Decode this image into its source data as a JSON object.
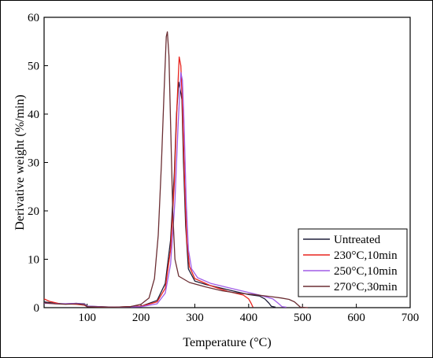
{
  "chart_data": {
    "type": "line",
    "title": "",
    "xlabel": "Temperature (°C)",
    "ylabel": "Derivative weight (%/min)",
    "xlim": [
      20,
      700
    ],
    "ylim": [
      0,
      60
    ],
    "xticks": [
      100,
      200,
      300,
      400,
      500,
      600,
      700
    ],
    "yticks": [
      0,
      10,
      20,
      30,
      40,
      50,
      60
    ],
    "grid": false,
    "legend_position": "bottom-right",
    "series": [
      {
        "name": "Untreated",
        "color": "#1f1f3a",
        "points": [
          [
            20,
            1.2
          ],
          [
            40,
            0.9
          ],
          [
            60,
            0.8
          ],
          [
            80,
            0.9
          ],
          [
            95,
            0.8
          ],
          [
            100,
            0.3
          ],
          [
            150,
            0.1
          ],
          [
            200,
            0.3
          ],
          [
            230,
            1.5
          ],
          [
            245,
            5
          ],
          [
            255,
            14
          ],
          [
            262,
            28
          ],
          [
            266,
            40
          ],
          [
            270,
            46.6
          ],
          [
            273,
            45
          ],
          [
            276,
            43
          ],
          [
            279,
            30
          ],
          [
            283,
            17
          ],
          [
            288,
            8
          ],
          [
            300,
            5.5
          ],
          [
            320,
            4.8
          ],
          [
            350,
            4
          ],
          [
            380,
            3.2
          ],
          [
            400,
            2.7
          ],
          [
            420,
            2.4
          ],
          [
            430,
            1.8
          ],
          [
            438,
            0.9
          ],
          [
            442,
            0.3
          ],
          [
            450,
            0.1
          ]
        ]
      },
      {
        "name": "230°C,10min",
        "color": "#e8231d",
        "points": [
          [
            20,
            1.8
          ],
          [
            30,
            1.3
          ],
          [
            50,
            0.8
          ],
          [
            80,
            0.7
          ],
          [
            95,
            0.5
          ],
          [
            100,
            0.2
          ],
          [
            150,
            0.1
          ],
          [
            200,
            0.3
          ],
          [
            230,
            1.2
          ],
          [
            245,
            4
          ],
          [
            255,
            12
          ],
          [
            262,
            26
          ],
          [
            267,
            42
          ],
          [
            271,
            51.8
          ],
          [
            274,
            50
          ],
          [
            277,
            42
          ],
          [
            281,
            26
          ],
          [
            285,
            14
          ],
          [
            290,
            8.5
          ],
          [
            300,
            6
          ],
          [
            330,
            4.5
          ],
          [
            360,
            3.4
          ],
          [
            390,
            2.6
          ],
          [
            400,
            1.8
          ],
          [
            405,
            0.8
          ],
          [
            408,
            0.1
          ]
        ]
      },
      {
        "name": "250°C,10min",
        "color": "#a05ce6",
        "points": [
          [
            20,
            0.9
          ],
          [
            50,
            0.8
          ],
          [
            80,
            0.9
          ],
          [
            95,
            0.7
          ],
          [
            100,
            0.3
          ],
          [
            150,
            0.1
          ],
          [
            200,
            0.2
          ],
          [
            230,
            0.8
          ],
          [
            245,
            3
          ],
          [
            255,
            9
          ],
          [
            263,
            22
          ],
          [
            269,
            38
          ],
          [
            274,
            48.6
          ],
          [
            277,
            47
          ],
          [
            280,
            38
          ],
          [
            284,
            22
          ],
          [
            288,
            12
          ],
          [
            294,
            8
          ],
          [
            305,
            6.2
          ],
          [
            330,
            5
          ],
          [
            360,
            4.2
          ],
          [
            390,
            3.4
          ],
          [
            420,
            2.6
          ],
          [
            445,
            1.8
          ],
          [
            455,
            0.9
          ],
          [
            462,
            0.2
          ],
          [
            470,
            0.1
          ]
        ]
      },
      {
        "name": "270°C,30min",
        "color": "#6b2e33",
        "points": [
          [
            20,
            1
          ],
          [
            40,
            0.8
          ],
          [
            60,
            0.7
          ],
          [
            80,
            0.8
          ],
          [
            95,
            0.6
          ],
          [
            100,
            0.2
          ],
          [
            150,
            0.1
          ],
          [
            180,
            0.2
          ],
          [
            200,
            0.7
          ],
          [
            215,
            2
          ],
          [
            225,
            6
          ],
          [
            232,
            15
          ],
          [
            238,
            30
          ],
          [
            243,
            45
          ],
          [
            247,
            56
          ],
          [
            249,
            57
          ],
          [
            252,
            52
          ],
          [
            255,
            38
          ],
          [
            259,
            20
          ],
          [
            263,
            10
          ],
          [
            270,
            6.5
          ],
          [
            290,
            5.2
          ],
          [
            320,
            4.3
          ],
          [
            350,
            3.5
          ],
          [
            380,
            3
          ],
          [
            410,
            2.7
          ],
          [
            440,
            2.3
          ],
          [
            460,
            2
          ],
          [
            475,
            1.7
          ],
          [
            485,
            1.2
          ],
          [
            492,
            0.5
          ],
          [
            496,
            0.1
          ],
          [
            510,
            0
          ]
        ]
      }
    ]
  }
}
